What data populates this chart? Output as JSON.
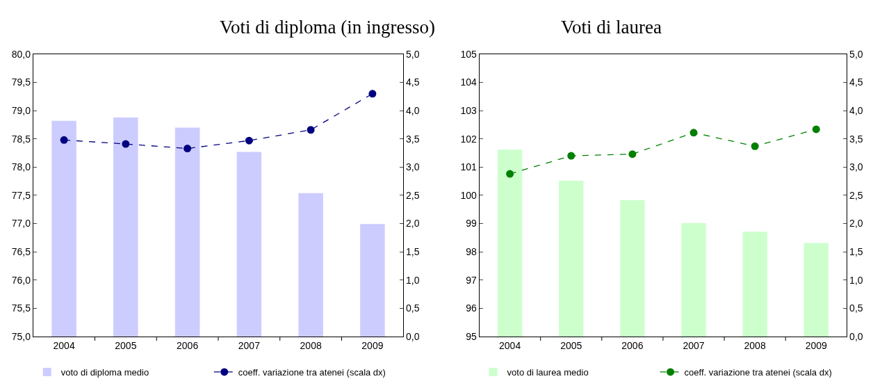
{
  "chart_data": [
    {
      "type": "bar",
      "title": "Voti di diploma (in ingresso)",
      "categories": [
        "2004",
        "2005",
        "2006",
        "2007",
        "2008",
        "2009"
      ],
      "series": [
        {
          "name": "voto di diploma medio",
          "color": "#ccccff",
          "values": [
            78.82,
            78.88,
            78.7,
            78.27,
            77.54,
            76.99
          ]
        },
        {
          "name": "coeff. variazione tra atenei (scala dx)",
          "type": "line",
          "axis": "y2",
          "color": "#000080",
          "marker": "circle",
          "line_style": "dashed",
          "values": [
            3.48,
            3.41,
            3.33,
            3.47,
            3.66,
            4.3
          ]
        }
      ],
      "ylim": [
        75,
        80
      ],
      "yticks": [
        {
          "value": 75,
          "label": "75,0"
        },
        {
          "value": 75.5,
          "label": "75,5"
        },
        {
          "value": 76,
          "label": "76,0"
        },
        {
          "value": 76.5,
          "label": "76,5"
        },
        {
          "value": 77,
          "label": "77,0"
        },
        {
          "value": 77.5,
          "label": "77,5"
        },
        {
          "value": 78,
          "label": "78,0"
        },
        {
          "value": 78.5,
          "label": "78,5"
        },
        {
          "value": 79,
          "label": "79,0"
        },
        {
          "value": 79.5,
          "label": "79,5"
        },
        {
          "value": 80,
          "label": "80,0"
        }
      ],
      "y2lim": [
        0,
        5
      ],
      "y2ticks": [
        {
          "value": 0,
          "label": "0,0"
        },
        {
          "value": 0.5,
          "label": "0,5"
        },
        {
          "value": 1,
          "label": "1,0"
        },
        {
          "value": 1.5,
          "label": "1,5"
        },
        {
          "value": 2,
          "label": "2,0"
        },
        {
          "value": 2.5,
          "label": "2,5"
        },
        {
          "value": 3,
          "label": "3,0"
        },
        {
          "value": 3.5,
          "label": "3,5"
        },
        {
          "value": 4,
          "label": "4,0"
        },
        {
          "value": 4.5,
          "label": "4,5"
        },
        {
          "value": 5,
          "label": "5,0"
        }
      ],
      "legend": "bottom"
    },
    {
      "type": "bar",
      "title": "Voti di laurea",
      "categories": [
        "2004",
        "2005",
        "2006",
        "2007",
        "2008",
        "2009"
      ],
      "series": [
        {
          "name": "voto di laurea medio",
          "color": "#ccffcc",
          "values": [
            101.62,
            100.52,
            99.83,
            99.02,
            98.71,
            98.31
          ]
        },
        {
          "name": "coeff. variazione tra atenei (scala dx)",
          "type": "line",
          "axis": "y2",
          "color": "#008000",
          "marker": "circle",
          "line_style": "dashed",
          "values": [
            2.88,
            3.2,
            3.23,
            3.61,
            3.37,
            3.67
          ]
        }
      ],
      "ylim": [
        95,
        105
      ],
      "yticks": [
        95,
        96,
        97,
        98,
        99,
        100,
        101,
        102,
        103,
        104,
        105
      ],
      "y2lim": [
        0,
        5
      ],
      "y2ticks": [
        {
          "value": 0,
          "label": "0,0"
        },
        {
          "value": 0.5,
          "label": "0,5"
        },
        {
          "value": 1,
          "label": "1,0"
        },
        {
          "value": 1.5,
          "label": "1,5"
        },
        {
          "value": 2,
          "label": "2,0"
        },
        {
          "value": 2.5,
          "label": "2,5"
        },
        {
          "value": 3,
          "label": "3,0"
        },
        {
          "value": 3.5,
          "label": "3,5"
        },
        {
          "value": 4,
          "label": "4,0"
        },
        {
          "value": 4.5,
          "label": "4,5"
        },
        {
          "value": 5,
          "label": "5,0"
        }
      ],
      "legend": "bottom"
    }
  ]
}
